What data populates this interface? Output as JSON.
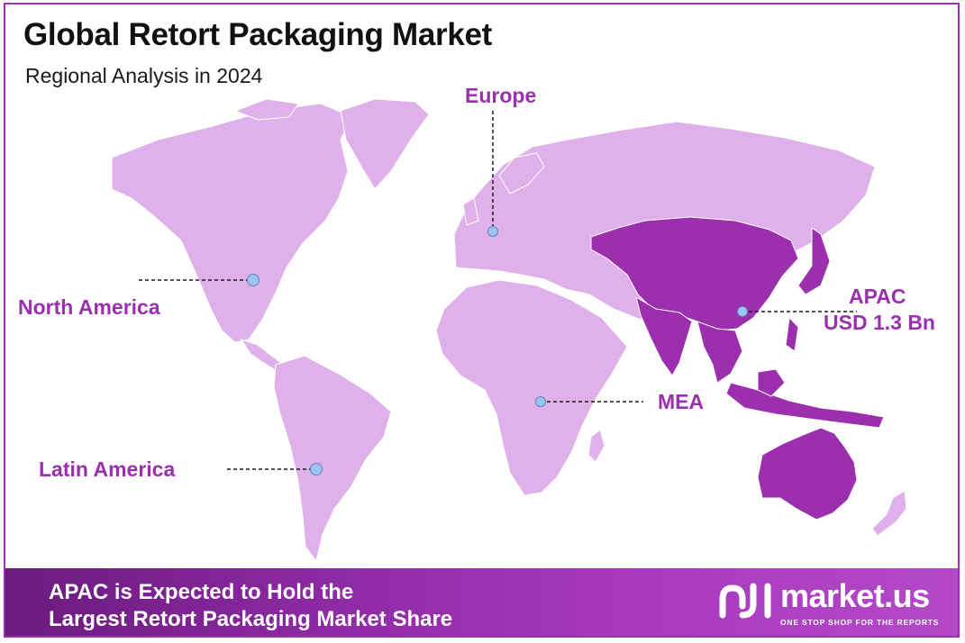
{
  "title": "Global Retort Packaging Market",
  "subtitle": "Regional Analysis in 2024",
  "regions": {
    "europe": {
      "label": "Europe"
    },
    "north_america": {
      "label": "North America"
    },
    "apac": {
      "label": "APAC",
      "value": "USD 1.3 Bn"
    },
    "mea": {
      "label": "MEA"
    },
    "latin_america": {
      "label": "Latin America"
    }
  },
  "colors": {
    "base_land": "#dfb0ea",
    "highlight_land": "#9b2fae",
    "label": "#9b2fae",
    "marker": "#9ec3ee"
  },
  "footer": {
    "line1": "APAC is Expected to Hold the",
    "line2": "Largest Retort Packaging Market Share"
  },
  "brand": {
    "name": "market.us",
    "tagline": "ONE STOP SHOP FOR THE REPORTS"
  }
}
